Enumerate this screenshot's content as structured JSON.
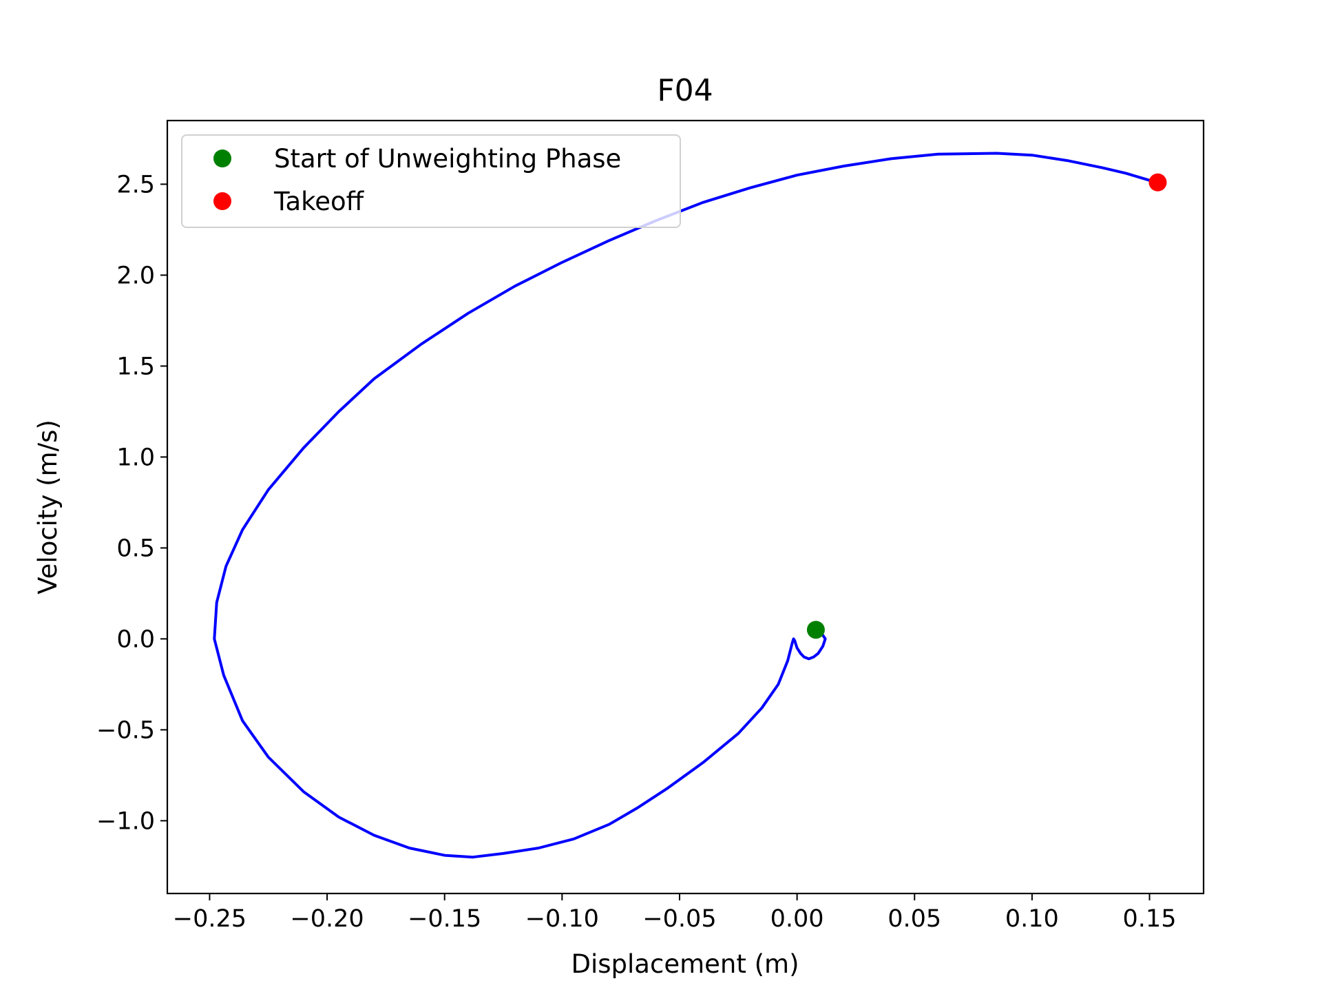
{
  "chart_data": {
    "type": "line",
    "title": "F04",
    "xlabel": "Displacement (m)",
    "ylabel": "Velocity (m/s)",
    "xlim": [
      -0.268,
      0.173
    ],
    "ylim": [
      -1.4,
      2.85
    ],
    "grid": false,
    "legend_position": "top-left",
    "xticks": [
      {
        "value": -0.25,
        "label": "−0.25"
      },
      {
        "value": -0.2,
        "label": "−0.20"
      },
      {
        "value": -0.15,
        "label": "−0.15"
      },
      {
        "value": -0.1,
        "label": "−0.10"
      },
      {
        "value": -0.05,
        "label": "−0.05"
      },
      {
        "value": 0.0,
        "label": "0.00"
      },
      {
        "value": 0.05,
        "label": "0.05"
      },
      {
        "value": 0.1,
        "label": "0.10"
      },
      {
        "value": 0.15,
        "label": "0.15"
      }
    ],
    "yticks": [
      {
        "value": -1.0,
        "label": "−1.0"
      },
      {
        "value": -0.5,
        "label": "−0.5"
      },
      {
        "value": 0.0,
        "label": "0.0"
      },
      {
        "value": 0.5,
        "label": "0.5"
      },
      {
        "value": 1.0,
        "label": "1.0"
      },
      {
        "value": 1.5,
        "label": "1.5"
      },
      {
        "value": 2.0,
        "label": "2.0"
      },
      {
        "value": 2.5,
        "label": "2.5"
      }
    ],
    "series": [
      {
        "color": "#0000ff",
        "x": [
          0.007,
          0.009,
          0.011,
          0.012,
          0.011,
          0.009,
          0.007,
          0.005,
          0.003,
          0.0015,
          0.0,
          -0.0005,
          -0.001,
          -0.0015,
          -0.002,
          -0.004,
          -0.008,
          -0.015,
          -0.025,
          -0.04,
          -0.055,
          -0.068,
          -0.08,
          -0.095,
          -0.11,
          -0.125,
          -0.138,
          -0.15,
          -0.165,
          -0.18,
          -0.195,
          -0.21,
          -0.225,
          -0.236,
          -0.244,
          -0.248,
          -0.247,
          -0.243,
          -0.236,
          -0.225,
          -0.21,
          -0.195,
          -0.18,
          -0.16,
          -0.14,
          -0.12,
          -0.1,
          -0.08,
          -0.06,
          -0.04,
          -0.02,
          0.0,
          0.02,
          0.04,
          0.06,
          0.085,
          0.1,
          0.115,
          0.13,
          0.14,
          0.153
        ],
        "y": [
          0.05,
          0.04,
          0.02,
          0.0,
          -0.04,
          -0.08,
          -0.1,
          -0.11,
          -0.1,
          -0.08,
          -0.05,
          -0.03,
          -0.01,
          0.0,
          -0.02,
          -0.12,
          -0.25,
          -0.38,
          -0.52,
          -0.68,
          -0.82,
          -0.93,
          -1.02,
          -1.1,
          -1.15,
          -1.18,
          -1.2,
          -1.19,
          -1.15,
          -1.08,
          -0.98,
          -0.84,
          -0.65,
          -0.45,
          -0.2,
          0.0,
          0.2,
          0.4,
          0.6,
          0.82,
          1.05,
          1.25,
          1.43,
          1.62,
          1.79,
          1.94,
          2.07,
          2.19,
          2.3,
          2.4,
          2.48,
          2.55,
          2.6,
          2.64,
          2.665,
          2.67,
          2.66,
          2.63,
          2.59,
          2.56,
          2.51
        ]
      }
    ],
    "markers": [
      {
        "label": "Start of Unweighting Phase",
        "color": "#008000",
        "x": 0.008,
        "y": 0.05
      },
      {
        "label": "Takeoff",
        "color": "#ff0000",
        "x": 0.1535,
        "y": 2.51
      }
    ]
  }
}
